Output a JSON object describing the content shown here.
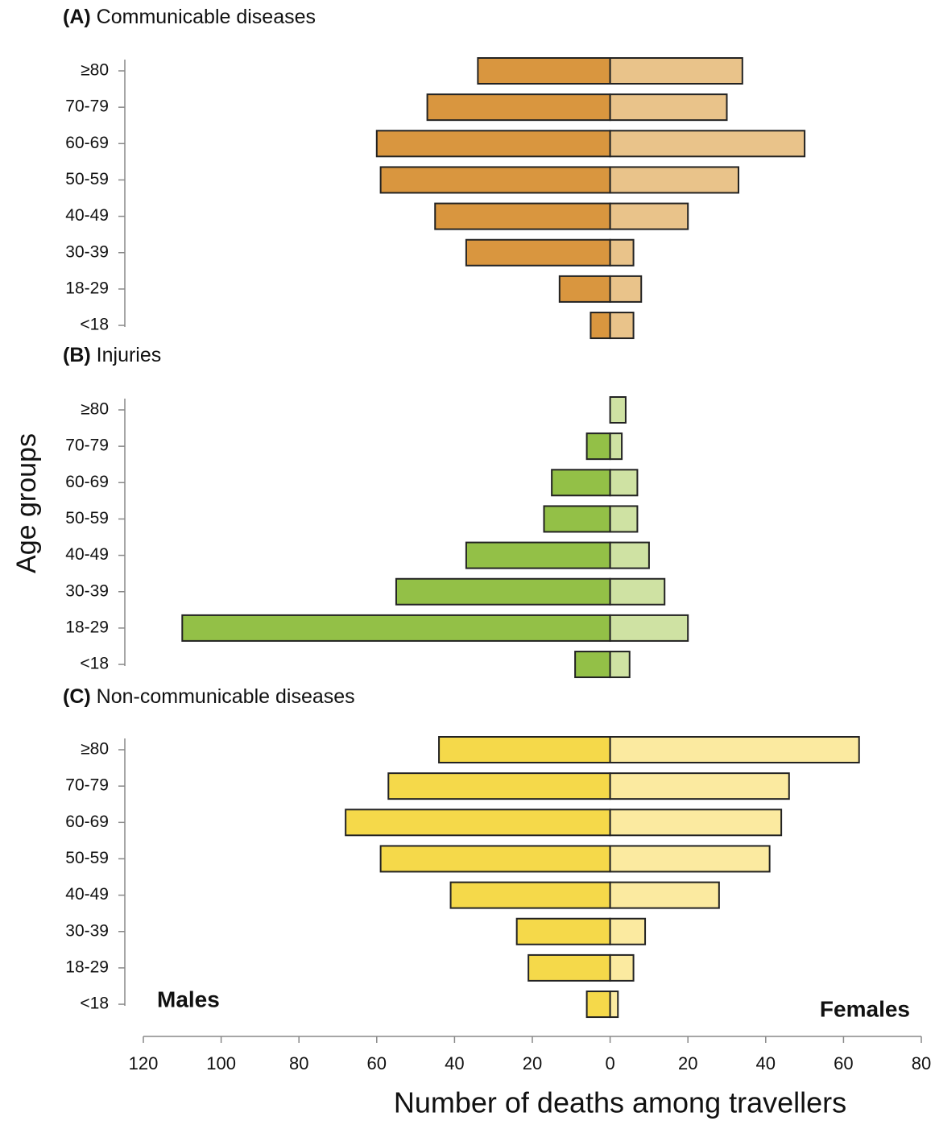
{
  "chart_data": [
    {
      "type": "pyramid",
      "label": "(A)",
      "title": "Communicable diseases",
      "categories": [
        "≥80",
        "70-79",
        "60-69",
        "50-59",
        "40-49",
        "30-39",
        "18-29",
        "<18"
      ],
      "series": [
        {
          "color": "#d9963f",
          "values": [
            34,
            47,
            60,
            59,
            45,
            37,
            13,
            5
          ]
        },
        {
          "color": "#e9c38a",
          "values": [
            34,
            30,
            50,
            33,
            20,
            6,
            8,
            6
          ]
        }
      ]
    },
    {
      "type": "pyramid",
      "label": "(B)",
      "title": "Injuries",
      "categories": [
        "≥80",
        "70-79",
        "60-69",
        "50-59",
        "40-49",
        "30-39",
        "18-29",
        "<18"
      ],
      "series": [
        {
          "color": "#93c047",
          "values": [
            0,
            6,
            15,
            17,
            37,
            55,
            110,
            9
          ]
        },
        {
          "color": "#cfe2a3",
          "values": [
            4,
            3,
            7,
            7,
            10,
            14,
            20,
            5
          ]
        }
      ]
    },
    {
      "type": "pyramid",
      "label": "(C)",
      "title": "Non-communicable diseases",
      "categories": [
        "≥80",
        "70-79",
        "60-69",
        "50-59",
        "40-49",
        "30-39",
        "18-29",
        "<18"
      ],
      "series": [
        {
          "name": "Males",
          "color": "#f5d94a",
          "values": [
            44,
            57,
            68,
            59,
            41,
            24,
            21,
            6
          ]
        },
        {
          "name": "Females",
          "color": "#fbeaa0",
          "values": [
            64,
            46,
            44,
            41,
            28,
            9,
            6,
            2
          ]
        }
      ]
    }
  ],
  "axes": {
    "xlabel": "Number of deaths among travellers",
    "ylabel": "Age groups",
    "xlim": [
      -120,
      80
    ],
    "xticks": [
      {
        "value": -120,
        "label": "120"
      },
      {
        "value": -100,
        "label": "100"
      },
      {
        "value": -80,
        "label": "80"
      },
      {
        "value": -60,
        "label": "60"
      },
      {
        "value": -40,
        "label": "40"
      },
      {
        "value": -20,
        "label": "20"
      },
      0,
      20,
      40,
      60,
      80
    ]
  }
}
